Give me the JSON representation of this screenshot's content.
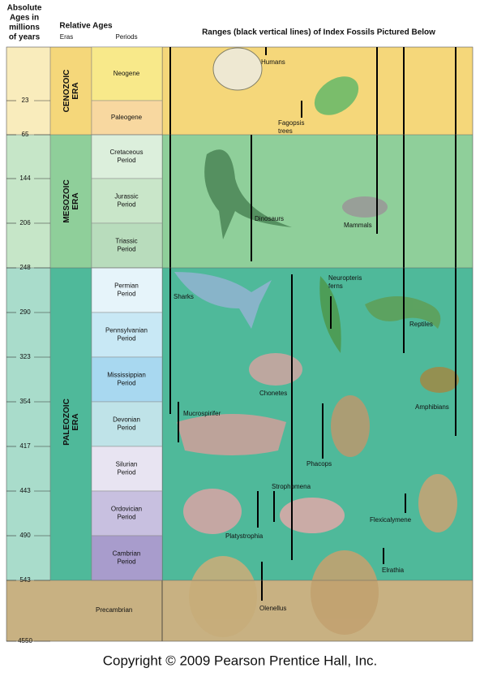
{
  "header": {
    "absolute_ages": [
      "Absolute",
      "Ages in",
      "millions",
      "of years"
    ],
    "relative_ages": "Relative Ages",
    "eras_heading": "Eras",
    "periods_heading": "Periods",
    "ranges_heading": "Ranges (black vertical lines) of Index Fossils Pictured Below"
  },
  "ages": [
    23,
    65,
    144,
    206,
    248,
    290,
    323,
    354,
    417,
    443,
    490,
    543,
    4550
  ],
  "eras": [
    {
      "lines": [
        "CENOZOIC",
        "ERA"
      ]
    },
    {
      "lines": [
        "MESOZOIC",
        "ERA"
      ]
    },
    {
      "lines": [
        "PALEOZOIC",
        "ERA"
      ]
    }
  ],
  "periods": [
    {
      "lines": [
        "Neogene"
      ]
    },
    {
      "lines": [
        "Paleogene"
      ]
    },
    {
      "lines": [
        "Cretaceous",
        "Period"
      ]
    },
    {
      "lines": [
        "Jurassic",
        "Period"
      ]
    },
    {
      "lines": [
        "Triassic",
        "Period"
      ]
    },
    {
      "lines": [
        "Permian",
        "Period"
      ]
    },
    {
      "lines": [
        "Pennsylvanian",
        "Period"
      ]
    },
    {
      "lines": [
        "Mississippian",
        "Period"
      ]
    },
    {
      "lines": [
        "Devonian",
        "Period"
      ]
    },
    {
      "lines": [
        "Silurian",
        "Period"
      ]
    },
    {
      "lines": [
        "Ordovician",
        "Period"
      ]
    },
    {
      "lines": [
        "Cambrian",
        "Period"
      ]
    }
  ],
  "precambrian": "Precambrian",
  "fossils": [
    {
      "lines": [
        "Humans"
      ]
    },
    {
      "lines": [
        "Fagopsis",
        "trees"
      ]
    },
    {
      "lines": [
        "Dinosaurs"
      ]
    },
    {
      "lines": [
        "Mammals"
      ]
    },
    {
      "lines": [
        "Sharks"
      ]
    },
    {
      "lines": [
        "Neuropteris",
        "ferns"
      ]
    },
    {
      "lines": [
        "Reptiles"
      ]
    },
    {
      "lines": [
        "Chonetes"
      ]
    },
    {
      "lines": [
        "Amphibians"
      ]
    },
    {
      "lines": [
        "Mucrospirifer"
      ]
    },
    {
      "lines": [
        "Phacops"
      ]
    },
    {
      "lines": [
        "Strophomena"
      ]
    },
    {
      "lines": [
        "Flexicalymene"
      ]
    },
    {
      "lines": [
        "Platystrophia"
      ]
    },
    {
      "lines": [
        "Olenellus"
      ]
    },
    {
      "lines": [
        "Elrathia"
      ]
    }
  ],
  "copyright": "Copyright © 2009 Pearson Prentice Hall, Inc."
}
